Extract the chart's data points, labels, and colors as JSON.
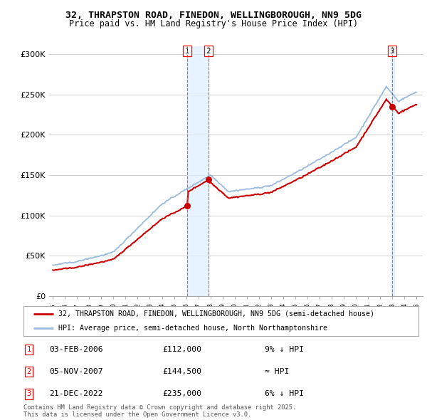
{
  "title1": "32, THRAPSTON ROAD, FINEDON, WELLINGBOROUGH, NN9 5DG",
  "title2": "Price paid vs. HM Land Registry's House Price Index (HPI)",
  "bg_color": "#ffffff",
  "plot_bg_color": "#ffffff",
  "grid_color": "#d0d0d0",
  "hpi_color": "#99bbdd",
  "price_color": "#cc0000",
  "shade_color": "#ddeeff",
  "dashed_line_color": "#cc4444",
  "legend_label_red": "32, THRAPSTON ROAD, FINEDON, WELLINGBOROUGH, NN9 5DG (semi-detached house)",
  "legend_label_blue": "HPI: Average price, semi-detached house, North Northamptonshire",
  "sale1_date": "03-FEB-2006",
  "sale1_price": 112000,
  "sale1_note": "9% ↓ HPI",
  "sale2_date": "05-NOV-2007",
  "sale2_price": 144500,
  "sale2_note": "≈ HPI",
  "sale3_date": "21-DEC-2022",
  "sale3_price": 235000,
  "sale3_note": "6% ↓ HPI",
  "footer": "Contains HM Land Registry data © Crown copyright and database right 2025.\nThis data is licensed under the Open Government Licence v3.0.",
  "ylim": [
    0,
    310000
  ],
  "yticks": [
    0,
    50000,
    100000,
    150000,
    200000,
    250000,
    300000
  ],
  "ytick_labels": [
    "£0",
    "£50K",
    "£100K",
    "£150K",
    "£200K",
    "£250K",
    "£300K"
  ]
}
